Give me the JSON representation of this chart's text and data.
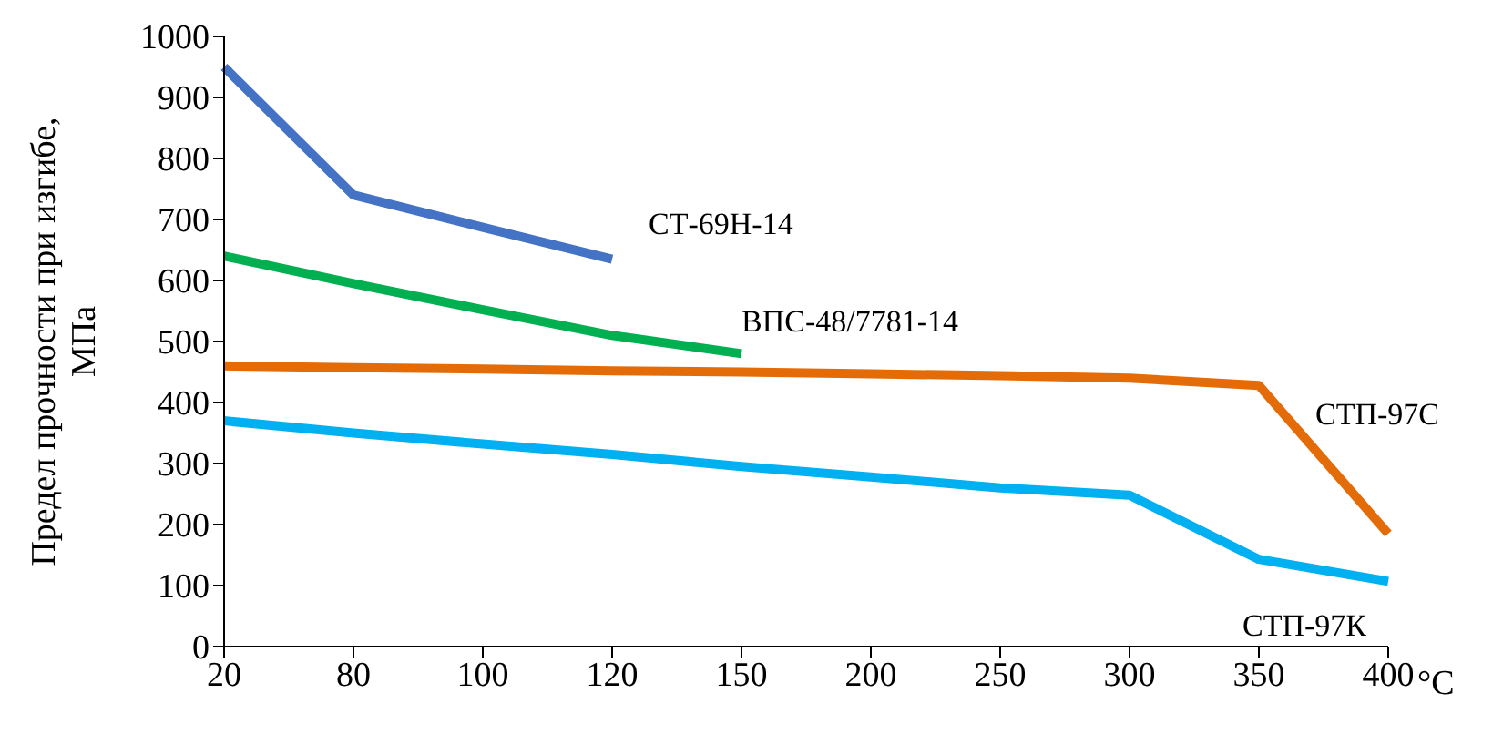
{
  "chart_data": {
    "type": "line",
    "xlabel": "°C",
    "ylabel": "Предел прочности при изгибе, МПа",
    "categories": [
      "20",
      "80",
      "100",
      "120",
      "150",
      "200",
      "250",
      "300",
      "350",
      "400"
    ],
    "ylim": [
      0,
      1000
    ],
    "yticks": [
      0,
      100,
      200,
      300,
      400,
      500,
      600,
      700,
      800,
      900,
      1000
    ],
    "grid": false,
    "legend": false,
    "marker": "none",
    "line_style": "solid",
    "series": [
      {
        "name": "СТ-69Н-14",
        "color": "#4472c4",
        "values": [
          950,
          740,
          687,
          635,
          null,
          null,
          null,
          null,
          null,
          null
        ]
      },
      {
        "name": "ВПС-48/7781-14",
        "color": "#00b050",
        "values": [
          640,
          595,
          552,
          510,
          480,
          null,
          null,
          null,
          null,
          null
        ]
      },
      {
        "name": "СТП-97С",
        "color": "#e36c09",
        "values": [
          460,
          457,
          455,
          452,
          450,
          447,
          444,
          440,
          428,
          185
        ]
      },
      {
        "name": "СТП-97К",
        "color": "#00b0f0",
        "values": [
          370,
          350,
          332,
          315,
          295,
          278,
          260,
          248,
          143,
          107
        ]
      }
    ]
  }
}
